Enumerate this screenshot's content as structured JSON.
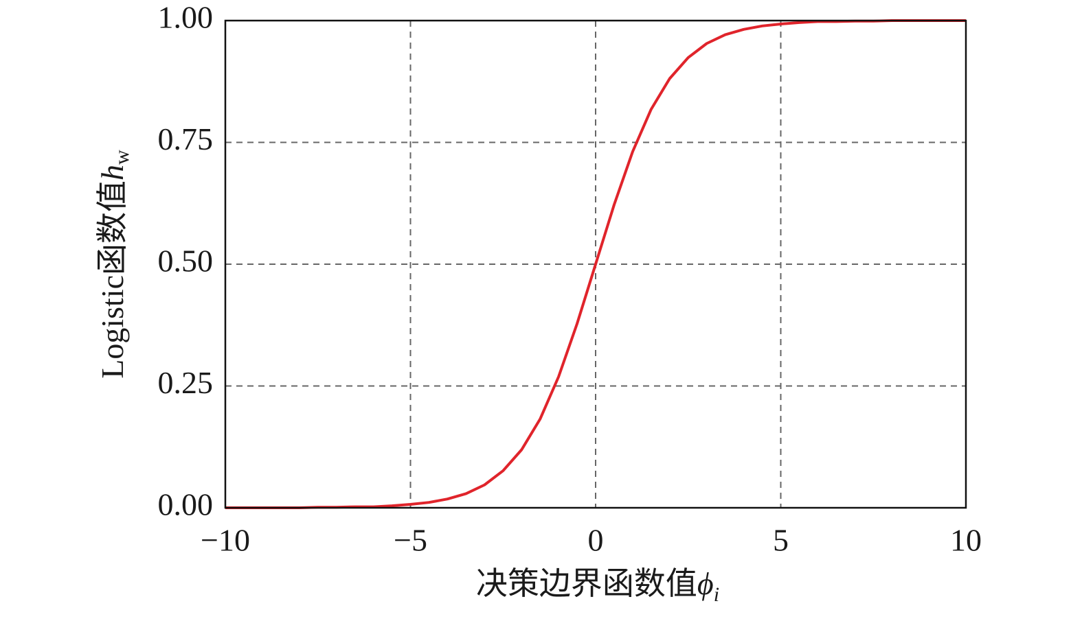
{
  "chart_data": {
    "type": "line",
    "xlabel": "决策边界函数值",
    "xlabel_symbol": "ϕ",
    "xlabel_subscript": "i",
    "ylabel": "Logistic函数值",
    "ylabel_symbol": "h",
    "ylabel_subscript": "w",
    "x": [
      -10,
      -9.5,
      -9,
      -8.5,
      -8,
      -7.5,
      -7,
      -6.5,
      -6,
      -5.5,
      -5,
      -4.5,
      -4,
      -3.5,
      -3,
      -2.5,
      -2,
      -1.5,
      -1,
      -0.5,
      0,
      0.5,
      1,
      1.5,
      2,
      2.5,
      3,
      3.5,
      4,
      4.5,
      5,
      5.5,
      6,
      6.5,
      7,
      7.5,
      8,
      8.5,
      9,
      9.5,
      10
    ],
    "series": [
      {
        "color": "#e0242b",
        "values": [
          0,
          0,
          0,
          0,
          0,
          0.001,
          0.001,
          0.002,
          0.002,
          0.004,
          0.007,
          0.011,
          0.018,
          0.029,
          0.047,
          0.076,
          0.119,
          0.182,
          0.269,
          0.378,
          0.5,
          0.622,
          0.731,
          0.818,
          0.881,
          0.924,
          0.953,
          0.971,
          0.982,
          0.989,
          0.993,
          0.996,
          0.998,
          0.998,
          0.999,
          0.999,
          1,
          1,
          1,
          1,
          1
        ]
      }
    ],
    "xlim": [
      -10,
      10
    ],
    "xticks": [
      {
        "value": -10,
        "label": "−10"
      },
      {
        "value": -5,
        "label": "−5"
      },
      0,
      5,
      10
    ],
    "ylim": [
      0,
      1
    ],
    "yticks": [
      {
        "value": 0,
        "label": "0.00"
      },
      {
        "value": 0.25,
        "label": "0.25"
      },
      {
        "value": 0.5,
        "label": "0.50"
      },
      {
        "value": 0.75,
        "label": "0.75"
      },
      {
        "value": 1,
        "label": "1.00"
      }
    ],
    "grid": true
  }
}
